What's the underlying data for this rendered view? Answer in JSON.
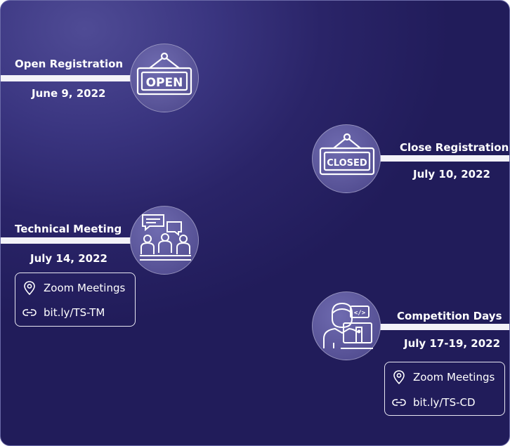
{
  "timeline": {
    "events": [
      {
        "title": "Open Registration",
        "date": "June 9, 2022",
        "icon": "open-sign-icon"
      },
      {
        "title": "Close Registration",
        "date": "July 10, 2022",
        "icon": "closed-sign-icon"
      },
      {
        "title": "Technical Meeting",
        "date": "July 14, 2022",
        "icon": "meeting-icon",
        "location": "Zoom Meetings",
        "link": "bit.ly/TS-TM"
      },
      {
        "title": "Competition Days",
        "date": "July 17-19, 2022",
        "icon": "coder-icon",
        "location": "Zoom Meetings",
        "link": "bit.ly/TS-CD"
      }
    ],
    "sign_open_text": "OPEN",
    "sign_closed_text": "CLOSED"
  },
  "colors": {
    "background": "#2a2468",
    "bar": "#f3f2f8",
    "circle": "#5a5599",
    "text": "#ffffff"
  }
}
